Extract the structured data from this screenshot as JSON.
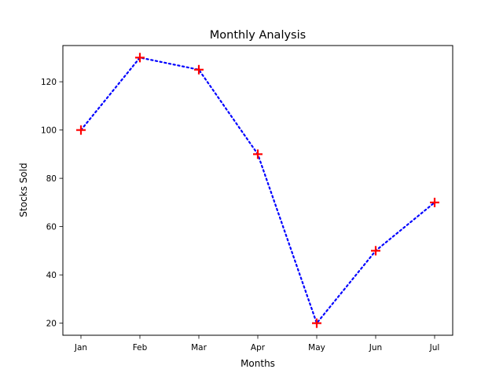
{
  "chart_data": {
    "type": "line",
    "title": "Monthly Analysis",
    "xlabel": "Months",
    "ylabel": "Stocks Sold",
    "categories": [
      "Jan",
      "Feb",
      "Mar",
      "Apr",
      "May",
      "Jun",
      "Jul"
    ],
    "series": [
      {
        "values": [
          100,
          130,
          125,
          90,
          20,
          50,
          70
        ],
        "line_color": "#0000ff",
        "line_style": "dotted",
        "marker": "plus",
        "marker_color": "#ff0000"
      }
    ],
    "ylim": [
      15,
      135
    ],
    "yticks": [
      20,
      40,
      60,
      80,
      100,
      120
    ],
    "grid": false,
    "legend": false
  }
}
